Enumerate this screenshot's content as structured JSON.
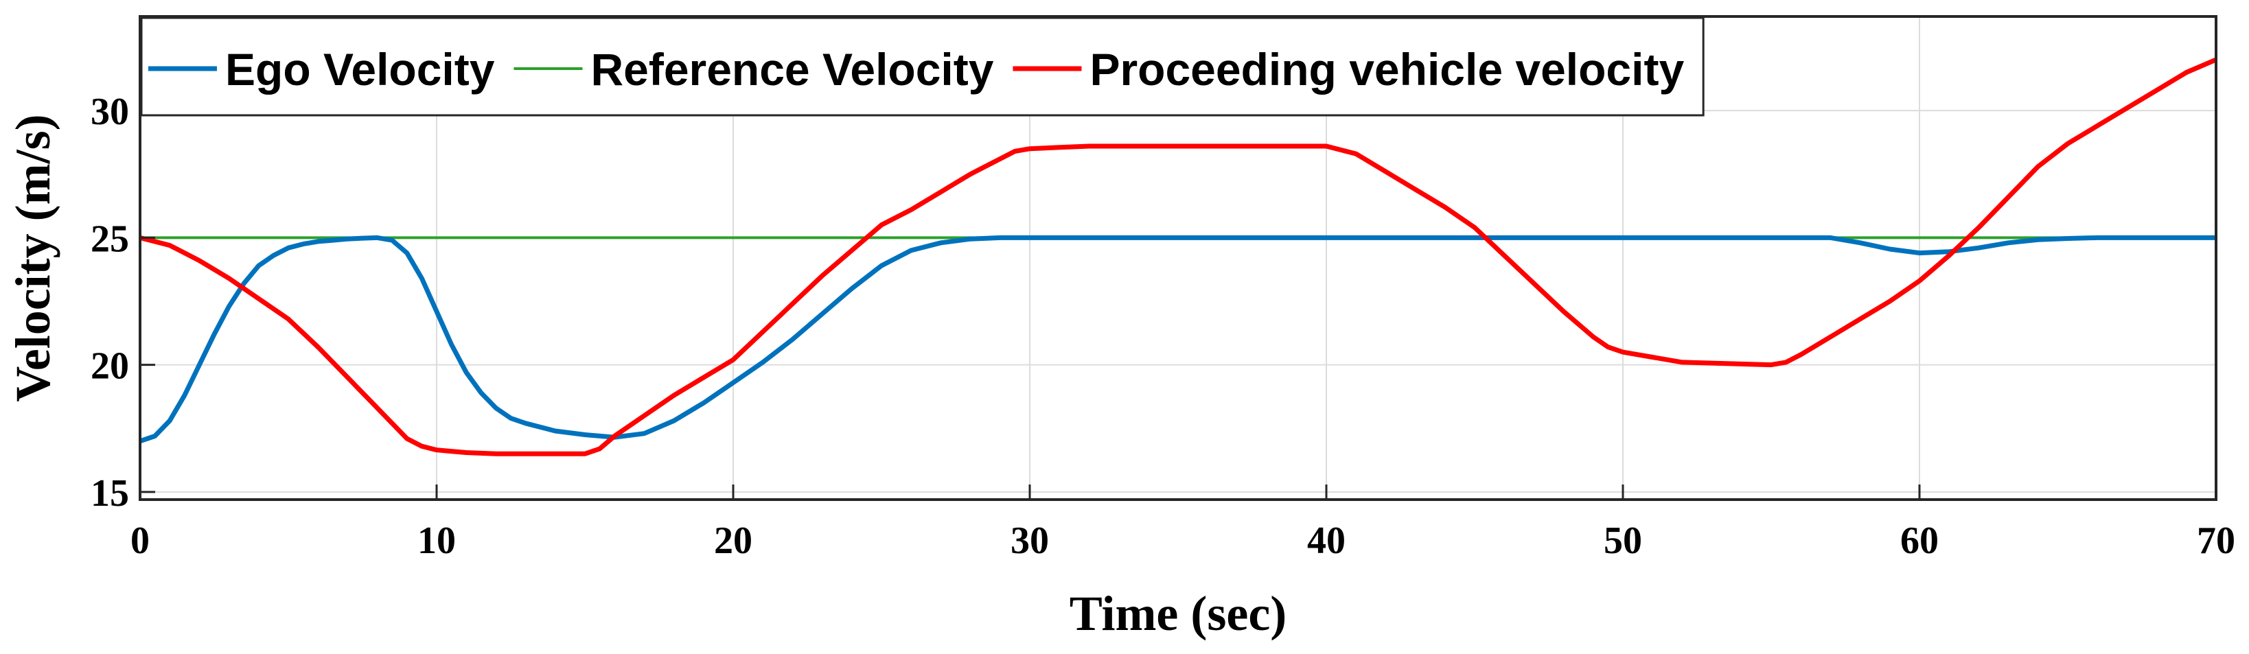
{
  "chart_data": {
    "type": "line",
    "title": "",
    "xlabel": "Time (sec)",
    "ylabel": "Velocity (m/s)",
    "xlim": [
      0,
      70
    ],
    "ylim": [
      14.7,
      33.7
    ],
    "xticks": [
      0,
      10,
      20,
      30,
      40,
      50,
      60,
      70
    ],
    "yticks": [
      15,
      20,
      25,
      30
    ],
    "grid": true,
    "legend_position": "top-left",
    "series": [
      {
        "name": "Ego Velocity",
        "color": "#0072BD",
        "x": [
          0,
          0.5,
          1,
          1.5,
          2,
          2.5,
          3,
          3.5,
          4,
          4.5,
          5,
          5.5,
          6,
          6.5,
          7,
          7.5,
          8,
          8.5,
          9,
          9.5,
          10,
          10.5,
          11,
          11.5,
          12,
          12.5,
          13,
          14,
          15,
          16,
          17,
          18,
          19,
          20,
          21,
          22,
          23,
          24,
          25,
          26,
          27,
          28,
          29,
          30,
          32,
          35,
          40,
          45,
          50,
          55,
          56,
          57,
          58,
          59,
          60,
          61,
          62,
          63,
          64,
          65,
          66,
          68,
          70
        ],
        "y": [
          17.0,
          17.2,
          17.8,
          18.8,
          20.0,
          21.2,
          22.3,
          23.2,
          23.9,
          24.3,
          24.6,
          24.75,
          24.85,
          24.9,
          24.95,
          24.98,
          25.0,
          24.9,
          24.4,
          23.4,
          22.1,
          20.8,
          19.7,
          18.9,
          18.3,
          17.9,
          17.7,
          17.4,
          17.25,
          17.15,
          17.3,
          17.8,
          18.5,
          19.3,
          20.1,
          21.0,
          22.0,
          23.0,
          23.9,
          24.5,
          24.8,
          24.95,
          25.0,
          25.0,
          25.0,
          25.0,
          25.0,
          25.0,
          25.0,
          25.0,
          25.0,
          25.0,
          24.8,
          24.55,
          24.4,
          24.45,
          24.6,
          24.8,
          24.92,
          24.97,
          25.0,
          25.0,
          25.0
        ]
      },
      {
        "name": "Reference Velocity",
        "color": "#2CA02C",
        "x": [
          0,
          70
        ],
        "y": [
          25,
          25
        ]
      },
      {
        "name": "Proceeding vehicle velocity",
        "color": "#FF0000",
        "x": [
          0,
          1,
          2,
          3,
          4,
          5,
          6,
          7,
          8,
          9,
          9.5,
          10,
          10.5,
          11,
          12,
          13,
          14,
          15,
          15.5,
          16,
          17,
          18,
          19,
          20,
          21,
          22,
          23,
          24,
          25,
          26,
          27,
          28,
          29,
          29.5,
          30,
          31,
          32,
          35,
          38,
          40,
          41,
          42,
          43,
          44,
          45,
          46,
          47,
          48,
          49,
          49.5,
          50,
          51,
          52,
          55,
          55.5,
          56,
          57,
          58,
          59,
          60,
          61,
          62,
          63,
          64,
          65,
          66,
          67,
          68,
          69,
          70
        ],
        "y": [
          25.0,
          24.7,
          24.1,
          23.4,
          22.6,
          21.8,
          20.7,
          19.5,
          18.3,
          17.1,
          16.8,
          16.65,
          16.6,
          16.55,
          16.5,
          16.5,
          16.5,
          16.5,
          16.7,
          17.2,
          18.0,
          18.8,
          19.5,
          20.2,
          21.3,
          22.4,
          23.5,
          24.5,
          25.5,
          26.1,
          26.8,
          27.5,
          28.1,
          28.4,
          28.5,
          28.55,
          28.6,
          28.6,
          28.6,
          28.6,
          28.3,
          27.6,
          26.9,
          26.2,
          25.4,
          24.3,
          23.2,
          22.1,
          21.1,
          20.7,
          20.5,
          20.3,
          20.1,
          20.0,
          20.1,
          20.4,
          21.1,
          21.8,
          22.5,
          23.3,
          24.3,
          25.4,
          26.6,
          27.8,
          28.7,
          29.4,
          30.1,
          30.8,
          31.5,
          32.0
        ]
      }
    ]
  }
}
